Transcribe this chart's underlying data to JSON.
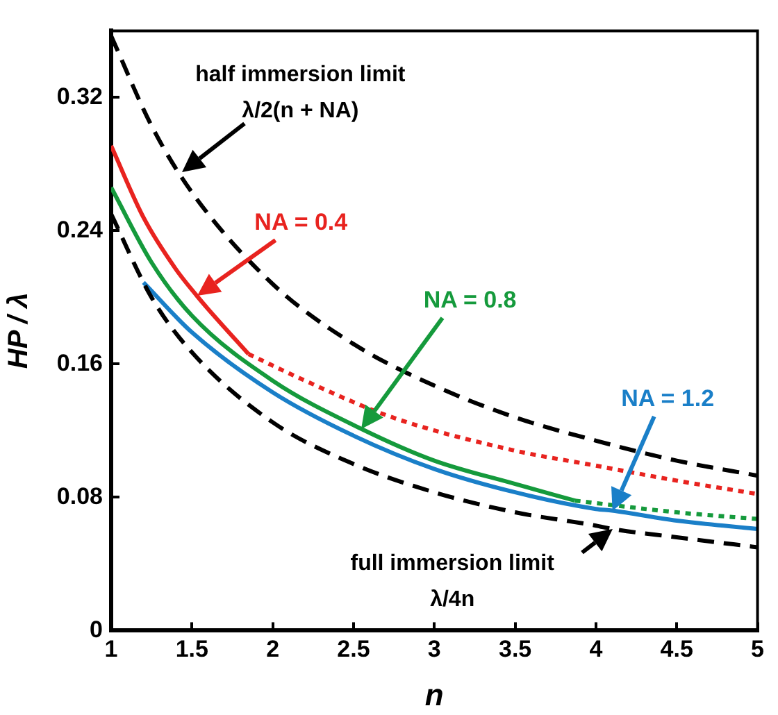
{
  "chart_data": {
    "type": "line",
    "xlabel": "n",
    "ylabel": "HP / λ",
    "xlim": [
      1,
      5
    ],
    "ylim": [
      0,
      0.36
    ],
    "xticks": [
      1,
      1.5,
      2,
      2.5,
      3,
      3.5,
      4,
      4.5,
      5
    ],
    "yticks": [
      0,
      0.08,
      0.16,
      0.24,
      0.32
    ],
    "grid": false,
    "legend": false,
    "marker": "none",
    "series": [
      {
        "color": "#000000",
        "line_style": "dashed",
        "x": [
          1,
          1.25,
          1.5,
          2,
          2.5,
          3,
          3.5,
          4,
          4.5,
          5
        ],
        "values": [
          0.357,
          0.303,
          0.263,
          0.208,
          0.172,
          0.147,
          0.128,
          0.114,
          0.102,
          0.093
        ]
      },
      {
        "color": "#000000",
        "line_style": "dashed",
        "x": [
          1,
          1.25,
          1.5,
          2,
          2.5,
          3,
          3.5,
          4,
          4.1,
          4.5,
          5
        ],
        "values": [
          0.25,
          0.2,
          0.167,
          0.125,
          0.1,
          0.083,
          0.071,
          0.063,
          0.061,
          0.056,
          0.05
        ]
      },
      {
        "name": "NA = 0.4",
        "color": "#e8231f",
        "line_style": "solid",
        "x": [
          1,
          1.2,
          1.4,
          1.53,
          1.6,
          1.85
        ],
        "values": [
          0.291,
          0.248,
          0.217,
          0.201,
          0.193,
          0.166
        ]
      },
      {
        "color": "#e8231f",
        "line_style": "dotted",
        "x": [
          1.85,
          2.2,
          2.74,
          3.5,
          4,
          4.5,
          5
        ],
        "values": [
          0.166,
          0.15,
          0.128,
          0.108,
          0.099,
          0.09,
          0.082
        ]
      },
      {
        "name": "NA = 0.8",
        "color": "#159a3c",
        "line_style": "solid",
        "x": [
          1,
          1.25,
          1.5,
          2,
          2.55,
          3,
          3.5,
          3.87
        ],
        "values": [
          0.266,
          0.221,
          0.189,
          0.15,
          0.121,
          0.102,
          0.088,
          0.078
        ]
      },
      {
        "color": "#159a3c",
        "line_style": "dotted",
        "x": [
          3.87,
          4.5,
          5
        ],
        "values": [
          0.078,
          0.071,
          0.067
        ]
      },
      {
        "name": "NA = 1.2",
        "color": "#1a7fc8",
        "line_style": "solid",
        "x": [
          1.2,
          1.5,
          2,
          2.5,
          3,
          3.5,
          4,
          4.1,
          4.5,
          5
        ],
        "values": [
          0.209,
          0.179,
          0.143,
          0.117,
          0.097,
          0.083,
          0.073,
          0.072,
          0.066,
          0.061
        ]
      }
    ],
    "annotations": [
      {
        "text": "half immersion limit\nλ/2(n + NA)",
        "x": 1.44,
        "y": 0.275
      },
      {
        "text": "full immersion limit\nλ/4n",
        "x": 4.1,
        "y": 0.061
      }
    ]
  }
}
